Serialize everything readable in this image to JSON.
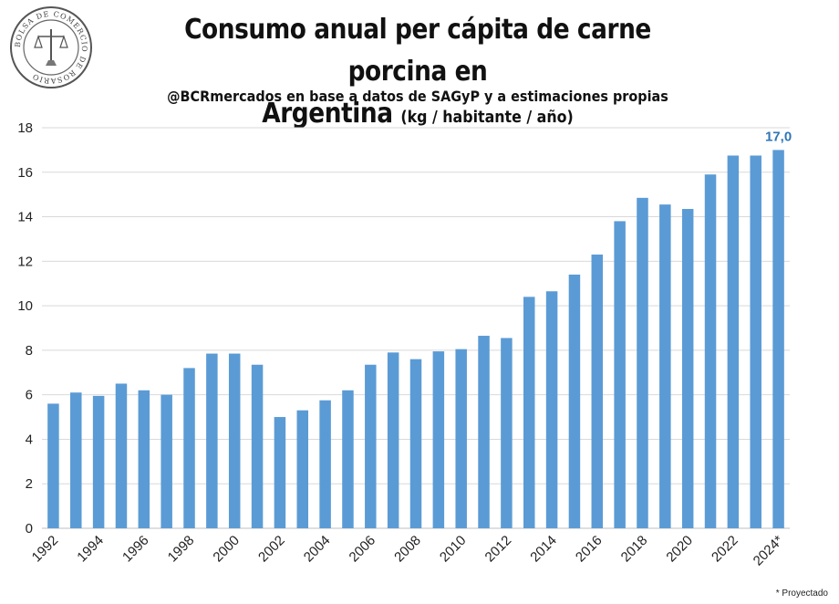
{
  "header": {
    "title_line1": "Consumo anual per cápita de carne porcina en",
    "title_line2": "Argentina",
    "title_unit": "(kg / habitante / año)",
    "subtitle": "@BCRmercados en base a datos de SAGyP y a estimaciones propias",
    "logo_text": "BOLSA DE COMERCIO DE ROSARIO"
  },
  "footnote": "* Proyectado",
  "colors": {
    "bar": "#5B9BD5",
    "highlight_label": "#2E75B6",
    "grid": "#D9D9D9"
  },
  "chart_data": {
    "type": "bar",
    "title": "Consumo anual per cápita de carne porcina en Argentina (kg / habitante / año)",
    "x": [
      "1992",
      "1993",
      "1994",
      "1995",
      "1996",
      "1997",
      "1998",
      "1999",
      "2000",
      "2001",
      "2002",
      "2003",
      "2004",
      "2005",
      "2006",
      "2007",
      "2008",
      "2009",
      "2010",
      "2011",
      "2012",
      "2013",
      "2014",
      "2015",
      "2016",
      "2017",
      "2018",
      "2019",
      "2020",
      "2021",
      "2022",
      "2023",
      "2024*"
    ],
    "x_tick_labels": [
      "1992",
      "",
      "1994",
      "",
      "1996",
      "",
      "1998",
      "",
      "2000",
      "",
      "2002",
      "",
      "2004",
      "",
      "2006",
      "",
      "2008",
      "",
      "2010",
      "",
      "2012",
      "",
      "2014",
      "",
      "2016",
      "",
      "2018",
      "",
      "2020",
      "",
      "2022",
      "",
      "2024*"
    ],
    "values": [
      5.6,
      6.1,
      5.95,
      6.5,
      6.2,
      6.0,
      7.2,
      7.85,
      7.85,
      7.35,
      5.0,
      5.3,
      5.75,
      6.2,
      7.35,
      7.9,
      7.6,
      7.95,
      8.05,
      8.65,
      8.55,
      10.4,
      10.65,
      11.4,
      12.3,
      13.8,
      14.85,
      14.55,
      14.35,
      15.9,
      16.75,
      16.75,
      17.0
    ],
    "ylim": [
      0,
      18
    ],
    "yticks": [
      0,
      2,
      4,
      6,
      8,
      10,
      12,
      14,
      16,
      18
    ],
    "grid": true,
    "data_labels": [
      {
        "index": 32,
        "text": "17,0"
      }
    ]
  }
}
